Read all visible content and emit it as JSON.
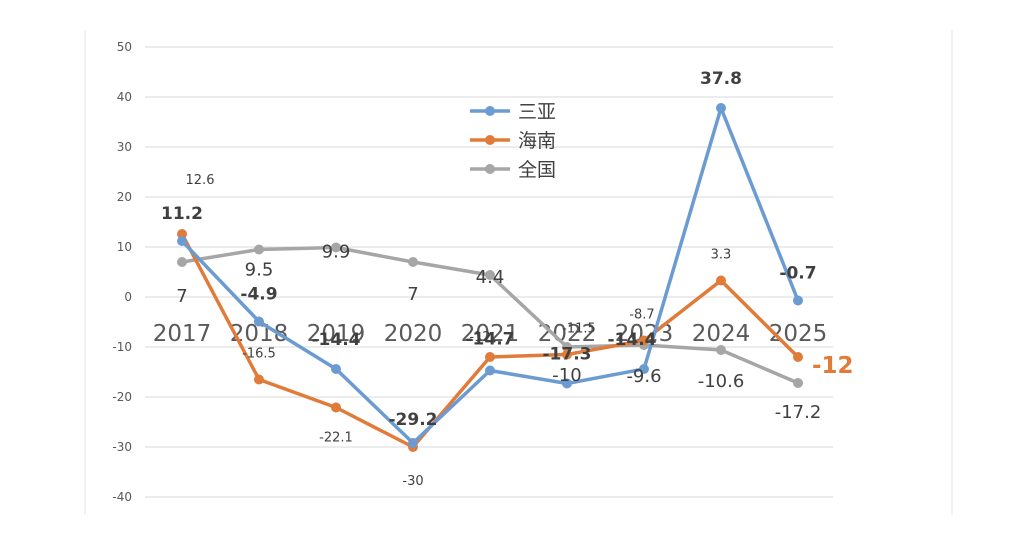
{
  "chart_data": {
    "type": "line",
    "categories": [
      "2017",
      "2018",
      "2019",
      "2020",
      "2021",
      "2022",
      "2023",
      "2024",
      "2025"
    ],
    "ylim": [
      -40,
      50
    ],
    "yticks": [
      "50",
      "40",
      "30",
      "20",
      "10",
      "0",
      "-10",
      "-20",
      "-30",
      "-40"
    ],
    "grid": true,
    "legend_position": "top-center",
    "series": [
      {
        "name": "三亚",
        "color": "#6b9bd1",
        "values": [
          11.2,
          -4.9,
          -14.4,
          -29.2,
          -14.7,
          -17.3,
          -14.4,
          37.8,
          -0.7
        ],
        "labels": [
          "11.2",
          "-4.9",
          "-14.4",
          "-29.2",
          "-14.7",
          "-17.3",
          "-14.4",
          "37.8",
          "-0.7"
        ]
      },
      {
        "name": "海南",
        "color": "#e07b39",
        "values": [
          12.6,
          -16.5,
          -22.1,
          -30,
          -12,
          -11.5,
          -8.7,
          3.3,
          -12
        ],
        "labels": [
          "12.6",
          "-16.5",
          "-22.1",
          "-30",
          "-12",
          "-11.5",
          "-8.7",
          "3.3",
          "-12"
        ]
      },
      {
        "name": "全国",
        "color": "#a6a6a6",
        "values": [
          7,
          9.5,
          9.9,
          7,
          4.4,
          -10,
          -9.6,
          -10.6,
          -17.2
        ],
        "labels": [
          "7",
          "9.5",
          "9.9",
          "7",
          "4.4",
          "-10",
          "-9.6",
          "-10.6",
          "-17.2"
        ]
      }
    ]
  }
}
